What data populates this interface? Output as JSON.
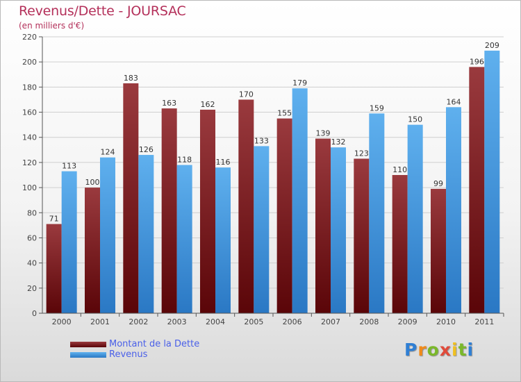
{
  "chart_data": {
    "type": "bar",
    "title": "Revenus/Dette - JOURSAC",
    "subtitle": "(en milliers d'€)",
    "categories": [
      "2000",
      "2001",
      "2002",
      "2003",
      "2004",
      "2005",
      "2006",
      "2007",
      "2008",
      "2009",
      "2010",
      "2011"
    ],
    "series": [
      {
        "name": "Montant de la Dette",
        "values": [
          71,
          100,
          183,
          163,
          162,
          170,
          155,
          139,
          123,
          110,
          99,
          196
        ]
      },
      {
        "name": "Revenus",
        "values": [
          113,
          124,
          126,
          118,
          116,
          133,
          179,
          132,
          159,
          150,
          164,
          209
        ]
      }
    ],
    "ylim": [
      0,
      220
    ],
    "yticks": [
      0,
      20,
      40,
      60,
      80,
      100,
      120,
      140,
      160,
      180,
      200,
      220
    ],
    "grid": true,
    "legend_position": "bottom-left",
    "colors": {
      "dette": "#6a0f14",
      "dette_light": "#9a3a3e",
      "revenus": "#3a8ad6",
      "revenus_light": "#5fb0ee"
    }
  },
  "logo": {
    "letters": [
      "P",
      "r",
      "o",
      "x",
      "i",
      "t",
      "i"
    ],
    "colors": [
      "#2f7fd4",
      "#f08a1a",
      "#7ab82a",
      "#e04a3a",
      "#f0c020",
      "#7ab82a",
      "#2f7fd4"
    ]
  }
}
